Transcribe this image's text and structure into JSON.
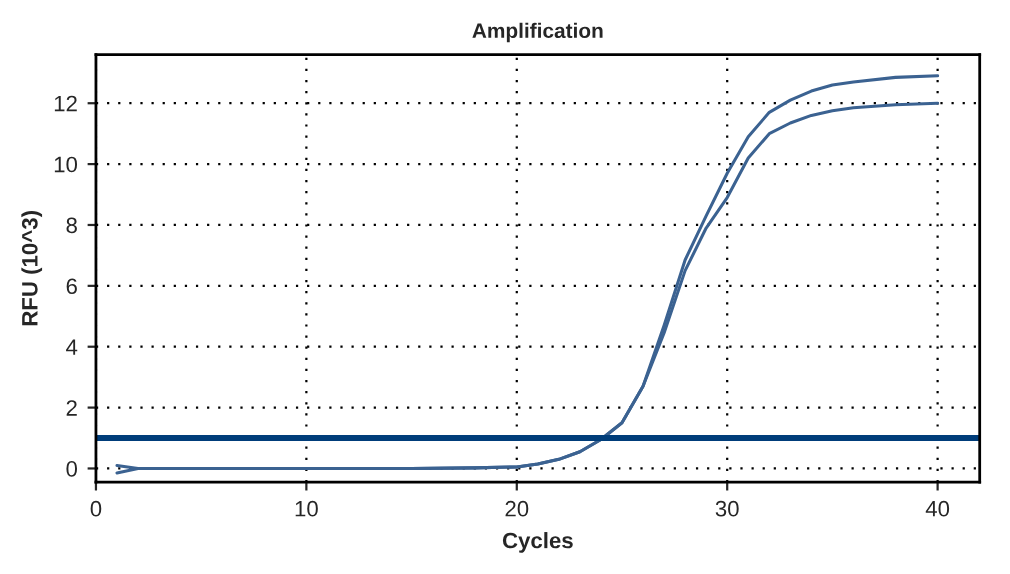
{
  "chart_data": {
    "type": "line",
    "title": "Amplification",
    "xlabel": "Cycles",
    "ylabel": "RFU (10^3)",
    "x": [
      1,
      2,
      5,
      10,
      15,
      18,
      20,
      21,
      22,
      23,
      24,
      25,
      26,
      27,
      28,
      29,
      30,
      31,
      32,
      33,
      34,
      35,
      36,
      38,
      40
    ],
    "series": [
      {
        "color": "#3b6291",
        "values": [
          -0.15,
          0.0,
          0.0,
          0.0,
          0.0,
          0.02,
          0.05,
          0.15,
          0.3,
          0.55,
          0.95,
          1.5,
          2.7,
          4.7,
          6.85,
          8.3,
          9.7,
          10.9,
          11.7,
          12.1,
          12.4,
          12.6,
          12.7,
          12.85,
          12.9
        ]
      },
      {
        "color": "#3b6291",
        "values": [
          0.1,
          0.0,
          0.0,
          0.0,
          0.0,
          0.02,
          0.05,
          0.15,
          0.3,
          0.55,
          0.95,
          1.5,
          2.7,
          4.45,
          6.5,
          7.9,
          8.9,
          10.2,
          11.0,
          11.35,
          11.6,
          11.75,
          11.85,
          11.95,
          12.0
        ]
      }
    ],
    "ref_lines": [
      {
        "axis": "y",
        "value": 1.0,
        "color": "#003d7a"
      }
    ],
    "xlim": [
      0,
      42
    ],
    "ylim": [
      -0.45,
      13.6
    ],
    "xticks": [
      0,
      10,
      20,
      30,
      40
    ],
    "yticks": [
      0,
      2,
      4,
      6,
      8,
      10,
      12
    ],
    "grid": true,
    "line_style": "solid",
    "legend": false
  }
}
